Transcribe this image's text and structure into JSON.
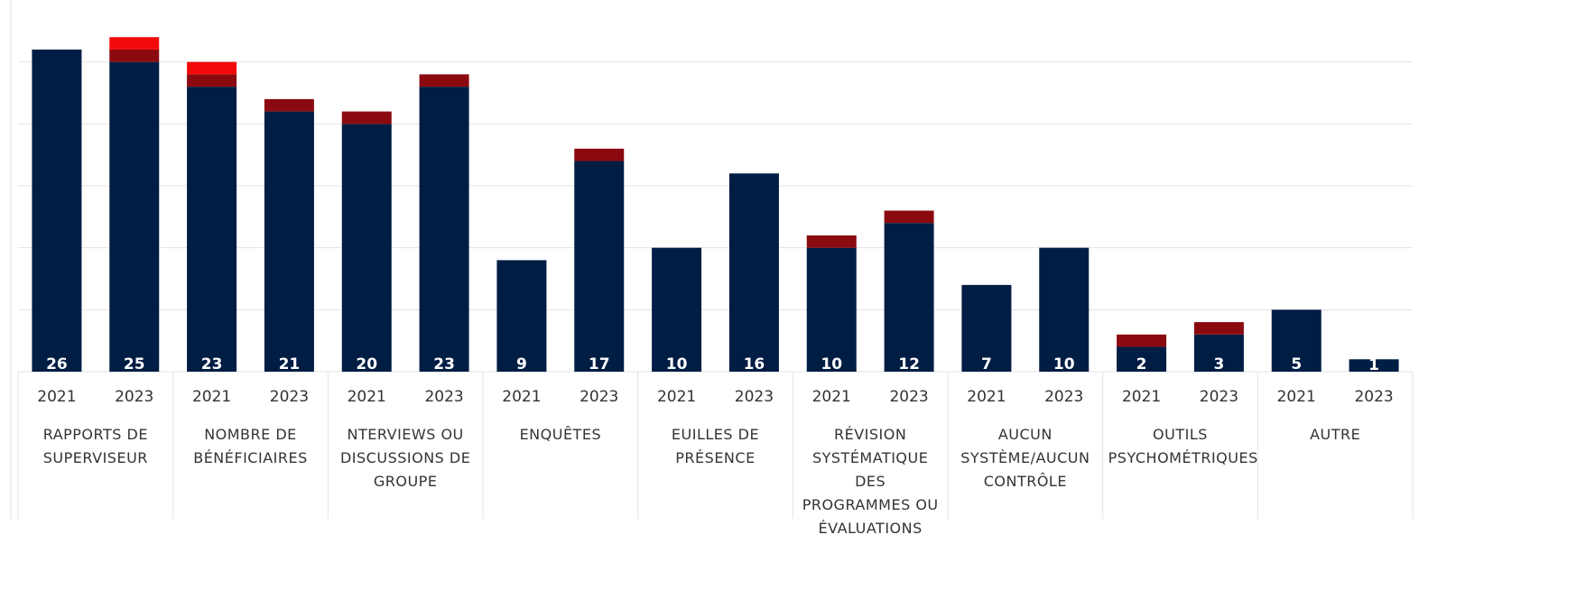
{
  "chart_data": {
    "type": "stacked-bar",
    "categories": [
      "2021",
      "2023",
      "2021",
      "2023",
      "2021",
      "2023",
      "2021",
      "2023",
      "2021",
      "2023",
      "2021",
      "2023",
      "2021",
      "2023",
      "2021",
      "2023",
      "2021",
      "2023"
    ],
    "groups": [
      "RAPPORTS DE SUPERVISEUR",
      "NOMBRE DE BÉNÉFICIAIRES",
      "NTERVIEWS OU DISCUSSIONS DE GROUPE",
      "ENQUÊTES",
      "EUILLES DE PRÉSENCE",
      "RÉVISION SYSTÉMATIQUE DES PROGRAMMES OU ÉVALUATIONS",
      "AUCUN SYSTÈME/AUCUN CONTRÔLE",
      "OUTILS PSYCHOMÉTRIQUES",
      "AUTRE"
    ],
    "series": [
      {
        "color": "#001d44",
        "values": [
          26,
          25,
          23,
          21,
          20,
          23,
          9,
          17,
          10,
          16,
          10,
          12,
          7,
          10,
          2,
          3,
          5,
          1
        ],
        "show_labels": true
      },
      {
        "color": "#8b0a10",
        "values": [
          null,
          1,
          1,
          1,
          1,
          1,
          null,
          1,
          null,
          null,
          1,
          1,
          null,
          null,
          1,
          1,
          null,
          null
        ]
      },
      {
        "color": "#f20a0a",
        "values": [
          null,
          1,
          1,
          null,
          null,
          null,
          null,
          null,
          null,
          null,
          null,
          null,
          null,
          null,
          null,
          null,
          null,
          null
        ]
      }
    ],
    "ylim": [
      0,
      30
    ],
    "yticks": [
      0,
      5,
      10,
      15,
      20,
      25
    ],
    "grid": true
  }
}
